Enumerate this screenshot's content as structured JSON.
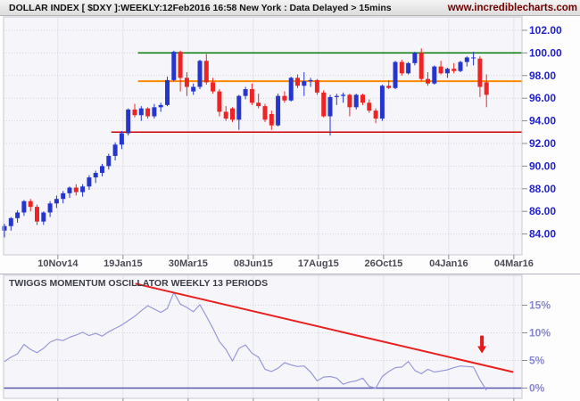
{
  "header": {
    "title": "DOLLAR INDEX [ $DXY ]:WEEKLY:12Feb2016 16:58 New York : Data Delayed > 15mins",
    "watermark": "www.incrediblecharts.com"
  },
  "colors": {
    "up_candle": "#2636cc",
    "down_candle": "#ee2424",
    "plot_background": "#f6f6fa",
    "plot_border": "#c8c8d2",
    "grid_vertical": "#e3e3eb",
    "grid_horizontal": "#d4d4de",
    "axis_tick": "#8a8a96",
    "price_label": "#2222cc",
    "date_label": "#4a4a55",
    "osc_label": "#8686cf",
    "osc_line": "#9898da",
    "zero_line": "#5858aa",
    "trendline": "#e82020",
    "arrow": "#e81818",
    "osc_title": "#3c3c46",
    "resistance": "#007700",
    "pivot": "#ff8800",
    "support": "#cc0000"
  },
  "chart_data": [
    {
      "type": "candlestick",
      "name": "price-panel",
      "title": "DOLLAR INDEX [ $DXY ] WEEKLY",
      "ylim": [
        82.0,
        103.5
      ],
      "y_ticks": [
        102,
        100,
        98,
        96,
        94,
        92,
        90,
        88,
        86,
        84
      ],
      "y_tick_labels": [
        "102.00",
        "100.00",
        "98.00",
        "96.00",
        "94.00",
        "92.00",
        "90.00",
        "88.00",
        "86.00",
        "84.00"
      ],
      "x_tick_labels": [
        "10Nov14",
        "19Jan15",
        "30Mar15",
        "08Jun15",
        "17Aug15",
        "26Oct15",
        "04Jan16",
        "04Mar16"
      ],
      "x_tick_indices": [
        8.2,
        18.2,
        28.2,
        38.2,
        48.2,
        58.2,
        68.2,
        78.2
      ],
      "candles": [
        [
          84.3,
          84.9,
          83.7,
          84.7
        ],
        [
          84.7,
          85.5,
          84.3,
          85.4
        ],
        [
          85.4,
          86.1,
          85.0,
          85.9
        ],
        [
          85.9,
          87.0,
          85.6,
          86.9
        ],
        [
          86.9,
          87.1,
          86.0,
          86.4
        ],
        [
          86.4,
          86.6,
          84.8,
          85.1
        ],
        [
          85.1,
          86.0,
          84.8,
          85.9
        ],
        [
          85.9,
          86.9,
          85.5,
          86.7
        ],
        [
          86.7,
          87.4,
          86.3,
          87.1
        ],
        [
          87.1,
          87.8,
          86.7,
          87.6
        ],
        [
          87.6,
          88.2,
          87.2,
          88.1
        ],
        [
          88.1,
          88.4,
          87.4,
          87.7
        ],
        [
          87.7,
          88.4,
          87.3,
          88.2
        ],
        [
          88.2,
          89.2,
          87.9,
          89.0
        ],
        [
          89.0,
          89.6,
          88.5,
          89.4
        ],
        [
          89.4,
          90.2,
          89.1,
          90.0
        ],
        [
          90.0,
          91.1,
          89.7,
          90.9
        ],
        [
          90.9,
          92.1,
          90.5,
          91.9
        ],
        [
          91.9,
          93.1,
          91.5,
          92.9
        ],
        [
          92.9,
          95.1,
          92.7,
          95.0
        ],
        [
          95.0,
          95.5,
          94.3,
          94.5
        ],
        [
          94.5,
          95.3,
          94.0,
          95.1
        ],
        [
          95.1,
          95.2,
          94.2,
          94.4
        ],
        [
          94.4,
          95.5,
          94.2,
          95.2
        ],
        [
          95.2,
          95.6,
          94.8,
          95.4
        ],
        [
          95.4,
          97.9,
          95.3,
          97.6
        ],
        [
          97.6,
          100.2,
          97.5,
          100.1
        ],
        [
          100.1,
          100.2,
          96.6,
          97.8
        ],
        [
          97.8,
          98.3,
          96.2,
          97.0
        ],
        [
          96.6,
          97.3,
          96.3,
          97.0
        ],
        [
          97.0,
          99.4,
          96.8,
          99.3
        ],
        [
          99.3,
          99.9,
          97.2,
          97.4
        ],
        [
          97.4,
          97.8,
          96.4,
          96.6
        ],
        [
          96.6,
          96.8,
          94.4,
          94.8
        ],
        [
          94.8,
          95.3,
          94.0,
          94.2
        ],
        [
          95.1,
          95.2,
          93.9,
          94.1
        ],
        [
          94.1,
          96.3,
          93.2,
          96.2
        ],
        [
          96.2,
          97.0,
          95.9,
          96.8
        ],
        [
          96.8,
          97.3,
          95.4,
          95.6
        ],
        [
          95.6,
          96.4,
          95.1,
          95.3
        ],
        [
          95.3,
          95.5,
          93.9,
          94.1
        ],
        [
          94.6,
          94.9,
          93.2,
          93.6
        ],
        [
          93.6,
          96.4,
          93.5,
          96.2
        ],
        [
          96.2,
          96.6,
          95.6,
          95.8
        ],
        [
          95.8,
          97.9,
          95.7,
          97.8
        ],
        [
          97.8,
          98.1,
          96.9,
          97.1
        ],
        [
          97.1,
          98.3,
          96.2,
          97.5
        ],
        [
          97.5,
          97.8,
          97.0,
          97.6
        ],
        [
          97.6,
          97.7,
          96.3,
          96.5
        ],
        [
          96.5,
          96.7,
          94.3,
          94.4
        ],
        [
          94.4,
          96.3,
          92.7,
          96.1
        ],
        [
          96.1,
          96.4,
          95.4,
          96.2
        ],
        [
          96.2,
          96.5,
          95.6,
          96.3
        ],
        [
          96.3,
          96.4,
          94.4,
          95.2
        ],
        [
          95.2,
          96.4,
          95.0,
          96.3
        ],
        [
          96.3,
          96.4,
          95.4,
          95.6
        ],
        [
          95.6,
          95.9,
          94.7,
          94.9
        ],
        [
          94.9,
          95.1,
          93.8,
          94.2
        ],
        [
          94.2,
          97.2,
          94.0,
          97.1
        ],
        [
          97.1,
          97.6,
          96.8,
          96.9
        ],
        [
          96.9,
          99.3,
          96.8,
          99.2
        ],
        [
          99.2,
          99.4,
          98.0,
          98.2
        ],
        [
          98.2,
          99.2,
          98.1,
          99.1
        ],
        [
          99.1,
          100.1,
          98.9,
          100.0
        ],
        [
          100.0,
          100.4,
          97.5,
          97.7
        ],
        [
          97.7,
          98.3,
          97.1,
          97.3
        ],
        [
          97.3,
          98.9,
          97.2,
          98.8
        ],
        [
          98.8,
          99.3,
          98.1,
          98.2
        ],
        [
          98.2,
          98.7,
          97.8,
          98.6
        ],
        [
          98.6,
          99.1,
          98.2,
          98.4
        ],
        [
          98.4,
          99.3,
          98.3,
          99.2
        ],
        [
          99.2,
          99.7,
          98.8,
          99.6
        ],
        [
          99.6,
          100.1,
          98.9,
          99.6
        ],
        [
          99.5,
          99.7,
          96.1,
          97.0
        ],
        [
          97.4,
          98.1,
          95.2,
          96.3
        ]
      ],
      "hlines": [
        {
          "name": "resistance-line",
          "value": 100.0,
          "color_key": "resistance",
          "from_index": 20.5,
          "width": 1.5
        },
        {
          "name": "pivot-line",
          "value": 97.5,
          "color_key": "pivot",
          "from_index": 20.5,
          "width": 2
        },
        {
          "name": "support-line",
          "value": 93.0,
          "color_key": "support",
          "from_index": 16.4,
          "width": 1.5
        }
      ]
    },
    {
      "type": "line",
      "name": "momentum-panel",
      "title": "TWIGGS MOMENTUM OSCILLATOR WEEKLY 13 PERIODS",
      "y_ticks": [
        15,
        10,
        5,
        0
      ],
      "y_tick_labels": [
        "15%",
        "10%",
        "5%",
        "0%"
      ],
      "ylim": [
        -2,
        20
      ],
      "values": [
        4.8,
        5.6,
        6.2,
        7.9,
        7.0,
        6.4,
        7.2,
        8.3,
        8.8,
        8.6,
        9.2,
        9.6,
        10.1,
        9.5,
        9.9,
        9.4,
        10.2,
        10.8,
        11.4,
        12.2,
        13.0,
        14.0,
        14.9,
        14.3,
        13.7,
        14.4,
        17.3,
        15.2,
        14.6,
        13.8,
        15.1,
        13.0,
        10.8,
        8.4,
        7.0,
        4.9,
        7.2,
        7.8,
        6.3,
        5.6,
        3.4,
        3.0,
        3.6,
        4.6,
        4.2,
        3.9,
        4.0,
        2.9,
        1.3,
        2.0,
        2.1,
        1.8,
        0.7,
        1.1,
        1.3,
        1.8,
        0.3,
        0.0,
        2.1,
        3.0,
        3.7,
        3.8,
        4.8,
        3.2,
        2.6,
        3.4,
        2.9,
        3.1,
        3.3,
        3.7,
        4.0,
        3.9,
        3.8,
        1.5,
        -0.4
      ],
      "zero_line_value": 0,
      "trendline": {
        "from_index": 20.1,
        "from_value": 18.9,
        "to_index": 78.1,
        "to_value": 2.9
      },
      "arrow": {
        "index": 73.3,
        "top_value": 9.5,
        "bottom_value": 6.3
      }
    }
  ]
}
